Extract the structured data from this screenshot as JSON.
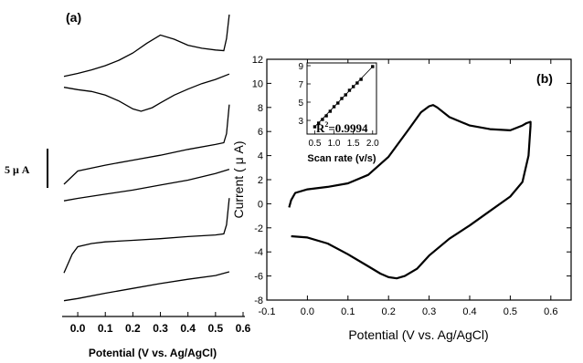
{
  "chart_data": [
    {
      "panel": "a",
      "type": "line",
      "panel_label": "(a)",
      "xlabel": "Potential (V vs. Ag/AgCl)",
      "xlim": [
        -0.05,
        0.6
      ],
      "xticks": [
        "0.0",
        "0.1",
        "0.2",
        "0.3",
        "0.4",
        "0.5",
        "0.6"
      ],
      "scale_bar_label": "5 μ A",
      "scale_bar_value_uA": 5,
      "series": [
        {
          "upper": {
            "x": [
              -0.05,
              0.0,
              0.05,
              0.1,
              0.15,
              0.2,
              0.25,
              0.3,
              0.35,
              0.4,
              0.45,
              0.5,
              0.53,
              0.54,
              0.55
            ],
            "y": [
              -1.8,
              -1.3,
              -0.7,
              0.0,
              0.9,
              2.1,
              3.7,
              5.1,
              4.4,
              3.4,
              2.9,
              2.6,
              2.5,
              4.5,
              8.5
            ]
          },
          "lower": {
            "x": [
              -0.05,
              0.0,
              0.05,
              0.1,
              0.15,
              0.2,
              0.23,
              0.27,
              0.3,
              0.35,
              0.4,
              0.45,
              0.5,
              0.55
            ],
            "y": [
              -3.6,
              -4.0,
              -4.3,
              -4.9,
              -5.9,
              -7.2,
              -7.6,
              -7.0,
              -6.2,
              -4.9,
              -3.9,
              -3.0,
              -2.3,
              -1.4
            ]
          }
        },
        {
          "upper": {
            "x": [
              -0.05,
              0.0,
              0.1,
              0.2,
              0.3,
              0.4,
              0.5,
              0.53,
              0.54,
              0.55
            ],
            "y": [
              -1.6,
              0.0,
              0.7,
              1.3,
              1.9,
              2.6,
              3.2,
              3.4,
              4.5,
              8.0
            ]
          },
          "lower": {
            "x": [
              -0.05,
              0.0,
              0.1,
              0.2,
              0.3,
              0.4,
              0.5,
              0.55
            ],
            "y": [
              -3.6,
              -3.3,
              -2.8,
              -2.3,
              -1.7,
              -1.1,
              -0.3,
              0.2
            ]
          }
        },
        {
          "upper": {
            "x": [
              -0.05,
              -0.02,
              0.0,
              0.05,
              0.1,
              0.2,
              0.3,
              0.4,
              0.5,
              0.53,
              0.54,
              0.55
            ],
            "y": [
              -3.0,
              0.5,
              1.9,
              2.5,
              2.8,
              3.1,
              3.4,
              3.8,
              4.1,
              4.3,
              6.0,
              11.0
            ]
          },
          "lower": {
            "x": [
              -0.05,
              0.0,
              0.1,
              0.2,
              0.3,
              0.4,
              0.5,
              0.55
            ],
            "y": [
              -8.2,
              -7.8,
              -6.8,
              -5.9,
              -5.0,
              -4.2,
              -3.5,
              -2.8
            ]
          }
        }
      ]
    },
    {
      "panel": "b",
      "type": "line",
      "panel_label": "(b)",
      "xlabel": "Potential (V vs. Ag/AgCl)",
      "ylabel": "Current ( μ A)",
      "xlim": [
        -0.1,
        0.65
      ],
      "ylim": [
        -8,
        12
      ],
      "xticks": [
        "-0.1",
        "0.0",
        "0.1",
        "0.2",
        "0.3",
        "0.4",
        "0.5",
        "0.6"
      ],
      "yticks": [
        "-8",
        "-6",
        "-4",
        "-2",
        "0",
        "2",
        "4",
        "6",
        "8",
        "10",
        "12"
      ],
      "series": [
        {
          "x": [
            -0.045,
            -0.04,
            -0.03,
            0.0,
            0.05,
            0.1,
            0.15,
            0.2,
            0.25,
            0.28,
            0.3,
            0.31,
            0.32,
            0.35,
            0.4,
            0.45,
            0.5,
            0.53,
            0.54,
            0.55,
            0.55
          ],
          "y": [
            -0.3,
            0.3,
            0.9,
            1.2,
            1.4,
            1.7,
            2.4,
            3.9,
            6.2,
            7.6,
            8.1,
            8.2,
            8.0,
            7.2,
            6.5,
            6.2,
            6.1,
            6.5,
            6.7,
            6.8,
            6.5
          ]
        },
        {
          "x": [
            0.55,
            0.545,
            0.53,
            0.5,
            0.45,
            0.4,
            0.35,
            0.3,
            0.27,
            0.24,
            0.22,
            0.2,
            0.18,
            0.15,
            0.1,
            0.05,
            0.0,
            -0.04
          ],
          "y": [
            6.5,
            4.0,
            1.8,
            0.6,
            -0.6,
            -1.8,
            -2.9,
            -4.3,
            -5.4,
            -6.0,
            -6.2,
            -6.1,
            -5.8,
            -5.2,
            -4.2,
            -3.3,
            -2.8,
            -2.7
          ]
        }
      ]
    },
    {
      "panel": "b-inset",
      "type": "scatter",
      "xlabel": "Scan rate (v/s)",
      "annotation": "R²=0.9994",
      "annotation_base": "R",
      "annotation_sup": "2",
      "annotation_rest": "=0.9994",
      "xlim": [
        0.3,
        2.1
      ],
      "ylim": [
        1.5,
        9.3
      ],
      "xticks": [
        "0.5",
        "1.0",
        "1.5",
        "2.0"
      ],
      "yticks": [
        "3",
        "5",
        "7",
        "9"
      ],
      "x": [
        0.5,
        0.6,
        0.7,
        0.8,
        0.9,
        1.0,
        1.1,
        1.2,
        1.3,
        1.4,
        1.5,
        1.6,
        1.7,
        2.0
      ],
      "y": [
        2.3,
        2.7,
        3.1,
        3.5,
        4.0,
        4.5,
        4.9,
        5.4,
        5.8,
        6.3,
        6.7,
        7.1,
        7.5,
        8.9
      ],
      "fit": {
        "x": [
          0.5,
          2.0
        ],
        "y": [
          2.3,
          8.9
        ]
      }
    }
  ]
}
